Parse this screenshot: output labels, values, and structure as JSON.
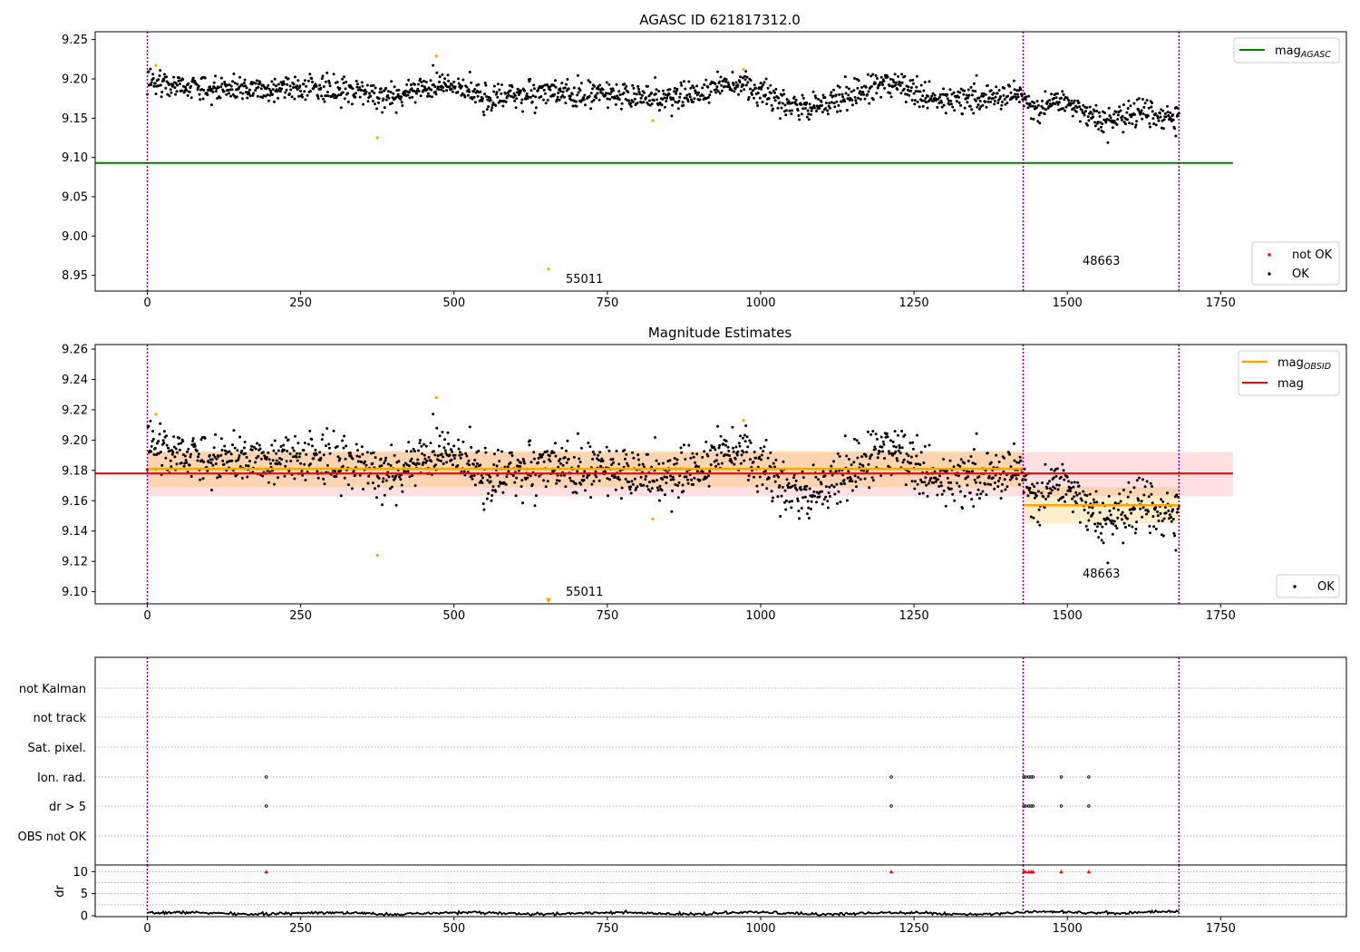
{
  "chart_data": [
    {
      "type": "scatter",
      "title": "AGASC ID 621817312.0",
      "xlim": [
        -85,
        1955
      ],
      "ylim": [
        8.93,
        9.26
      ],
      "xticks": [
        0,
        250,
        500,
        750,
        1000,
        1250,
        1500,
        1750
      ],
      "xtick_labels": [
        "0",
        "250",
        "500",
        "750",
        "1000",
        "1250",
        "1500",
        "1750"
      ],
      "yticks": [
        8.95,
        9.0,
        9.05,
        9.1,
        9.15,
        9.2,
        9.25
      ],
      "ytick_labels": [
        "8.95",
        "9.00",
        "9.05",
        "9.10",
        "9.15",
        "9.20",
        "9.25"
      ],
      "vlines": [
        0,
        1428,
        1682
      ],
      "series": [
        {
          "name": "mag_AGASC",
          "type": "hline",
          "y": 9.093,
          "x": [
            -85,
            1770
          ],
          "color": "#008000"
        },
        {
          "name": "OK",
          "type": "scatter",
          "color": "#000000",
          "description_points": "approx. 1680 points, mean ~9.18 drifting to ~9.15 after x=1428",
          "trend": [
            [
              0,
              9.197
            ],
            [
              100,
              9.187
            ],
            [
              200,
              9.188
            ],
            [
              300,
              9.188
            ],
            [
              400,
              9.178
            ],
            [
              480,
              9.195
            ],
            [
              550,
              9.175
            ],
            [
              650,
              9.182
            ],
            [
              750,
              9.18
            ],
            [
              850,
              9.175
            ],
            [
              970,
              9.195
            ],
            [
              1050,
              9.165
            ],
            [
              1100,
              9.165
            ],
            [
              1200,
              9.195
            ],
            [
              1300,
              9.172
            ],
            [
              1420,
              9.18
            ],
            [
              1440,
              9.165
            ],
            [
              1500,
              9.17
            ],
            [
              1560,
              9.145
            ],
            [
              1620,
              9.16
            ],
            [
              1680,
              9.147
            ]
          ]
        },
        {
          "name": "not OK",
          "type": "scatter",
          "color": "#ff0000",
          "points": []
        },
        {
          "name": "outliers",
          "type": "scatter",
          "color": "#ffa500",
          "points": [
            [
              14,
              9.217
            ],
            [
              375,
              9.125
            ],
            [
              471,
              9.229
            ],
            [
              654,
              8.958
            ],
            [
              824,
              9.147
            ],
            [
              972,
              9.212
            ]
          ]
        }
      ],
      "annotations": [
        {
          "text": "55011",
          "x": 680,
          "y": 8.944
        },
        {
          "text": "48663",
          "x": 1520,
          "y": 8.962
        }
      ],
      "legend": {
        "position": "top-right",
        "entries": [
          "mag_AGASC"
        ]
      },
      "legend2": {
        "position": "bottom-right",
        "entries": [
          "not OK",
          "OK"
        ]
      }
    },
    {
      "type": "scatter",
      "title": "Magnitude Estimates",
      "xlim": [
        -85,
        1955
      ],
      "ylim": [
        9.092,
        9.263
      ],
      "xticks": [
        0,
        250,
        500,
        750,
        1000,
        1250,
        1500,
        1750
      ],
      "xtick_labels": [
        "0",
        "250",
        "500",
        "750",
        "1000",
        "1250",
        "1500",
        "1750"
      ],
      "yticks": [
        9.1,
        9.12,
        9.14,
        9.16,
        9.18,
        9.2,
        9.22,
        9.24,
        9.26
      ],
      "ytick_labels": [
        "9.10",
        "9.12",
        "9.14",
        "9.16",
        "9.18",
        "9.20",
        "9.22",
        "9.24",
        "9.26"
      ],
      "vlines": [
        0,
        1428,
        1682
      ],
      "series": [
        {
          "name": "mag_OBSID",
          "type": "segments",
          "color": "#ffa500",
          "segments": [
            {
              "x": [
                0,
                1428
              ],
              "y": 9.181,
              "band": [
                9.169,
                9.193
              ]
            },
            {
              "x": [
                1428,
                1682
              ],
              "y": 9.157,
              "band": [
                9.145,
                9.169
              ]
            }
          ]
        },
        {
          "name": "mag",
          "type": "hline",
          "y": 9.178,
          "x": [
            -85,
            1770
          ],
          "band": [
            9.163,
            9.192
          ],
          "color": "#ff0000"
        },
        {
          "name": "OK",
          "type": "scatter",
          "color": "#000000"
        },
        {
          "name": "outliers",
          "type": "scatter",
          "color": "#ffa500",
          "points": [
            [
              14,
              9.217
            ],
            [
              375,
              9.124
            ],
            [
              471,
              9.228
            ],
            [
              654,
              9.094
            ],
            [
              824,
              9.148
            ],
            [
              972,
              9.213
            ]
          ]
        }
      ],
      "annotations": [
        {
          "text": "55011",
          "x": 680,
          "y": 9.097
        },
        {
          "text": "48663",
          "x": 1520,
          "y": 9.11
        }
      ],
      "legend": {
        "position": "top-right",
        "entries": [
          "mag_OBSID",
          "mag"
        ]
      },
      "legend2": {
        "position": "bottom-right",
        "entries": [
          "OK"
        ]
      }
    },
    {
      "type": "scatter",
      "title": "",
      "xlim": [
        -85,
        1955
      ],
      "categories": [
        "not Kalman",
        "not track",
        "Sat. pixel.",
        "Ion. rad.",
        "dr > 5",
        "OBS not OK"
      ],
      "vlines": [
        0,
        1428,
        1682
      ],
      "series": [
        {
          "name": "Ion. rad.",
          "x": [
            194,
            1213,
            1429,
            1432,
            1437,
            1441,
            1444,
            1490,
            1535
          ]
        },
        {
          "name": "dr > 5",
          "x": [
            194,
            1213,
            1429,
            1432,
            1437,
            1441,
            1444,
            1490,
            1535
          ]
        }
      ]
    },
    {
      "type": "line",
      "title": "",
      "xlim": [
        -85,
        1955
      ],
      "ylim": [
        -0.2,
        11.5
      ],
      "ylabel": "dr",
      "xticks": [
        0,
        250,
        500,
        750,
        1000,
        1250,
        1500,
        1750
      ],
      "xtick_labels": [
        "0",
        "250",
        "500",
        "750",
        "1000",
        "1250",
        "1500",
        "1750"
      ],
      "yticks": [
        0,
        5,
        10
      ],
      "ytick_labels": [
        "0",
        "5",
        "10"
      ],
      "vlines": [
        0,
        1428,
        1682
      ],
      "series": [
        {
          "name": "dr",
          "color": "#000000",
          "description": "values ~0.3-1.0 across 0-1682"
        },
        {
          "name": "dr clipped",
          "color": "#ff0000",
          "marker": "triangle",
          "y": 10,
          "x": [
            194,
            1213,
            1429,
            1432,
            1437,
            1441,
            1444,
            1490,
            1535
          ]
        }
      ]
    }
  ]
}
